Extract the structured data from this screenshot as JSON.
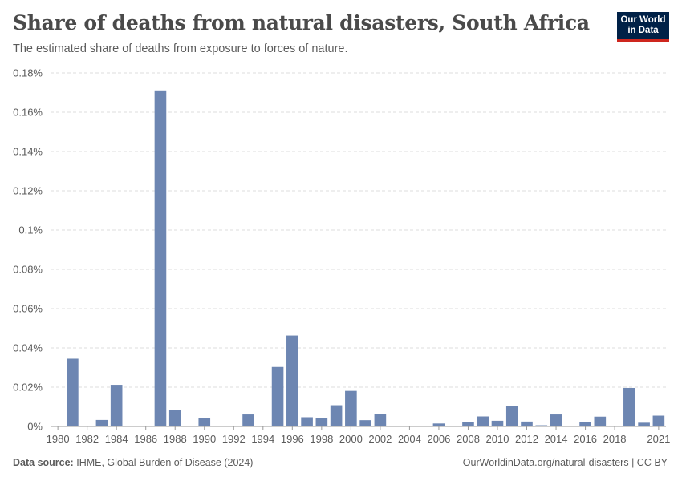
{
  "header": {
    "title": "Share of deaths from natural disasters, South Africa",
    "subtitle": "The estimated share of deaths from exposure to forces of nature."
  },
  "logo": {
    "line1": "Our World",
    "line2": "in Data"
  },
  "footer": {
    "source_label": "Data source:",
    "source_text": "IHME, Global Burden of Disease (2024)",
    "url_license": "OurWorldinData.org/natural-disasters | CC BY"
  },
  "colors": {
    "bar": "#6d86b2",
    "grid": "#dddddd",
    "axis": "#999999",
    "text": "#5b5b5b"
  },
  "chart_data": {
    "type": "bar",
    "title": "Share of deaths from natural disasters, South Africa",
    "xlabel": "",
    "ylabel": "",
    "unit": "%",
    "ylim": [
      0,
      0.18
    ],
    "yticks": [
      0,
      0.02,
      0.04,
      0.06,
      0.08,
      0.1,
      0.12,
      0.14,
      0.16,
      0.18
    ],
    "ytick_labels": [
      "0%",
      "0.02%",
      "0.04%",
      "0.06%",
      "0.08%",
      "0.1%",
      "0.12%",
      "0.14%",
      "0.16%",
      "0.18%"
    ],
    "xticks": [
      1980,
      1982,
      1984,
      1986,
      1988,
      1990,
      1992,
      1994,
      1996,
      1998,
      2000,
      2002,
      2004,
      2006,
      2008,
      2010,
      2012,
      2014,
      2016,
      2018,
      2021
    ],
    "grid": true,
    "categories": [
      1980,
      1981,
      1982,
      1983,
      1984,
      1985,
      1986,
      1987,
      1988,
      1989,
      1990,
      1991,
      1992,
      1993,
      1994,
      1995,
      1996,
      1997,
      1998,
      1999,
      2000,
      2001,
      2002,
      2003,
      2004,
      2005,
      2006,
      2007,
      2008,
      2009,
      2010,
      2011,
      2012,
      2013,
      2014,
      2015,
      2016,
      2017,
      2018,
      2019,
      2020,
      2021
    ],
    "values": [
      0,
      0.0345,
      0,
      0.0033,
      0.0212,
      0,
      0,
      0.1711,
      0.0085,
      0,
      0.0041,
      0,
      0,
      0.0061,
      0.0004,
      0.0303,
      0.0463,
      0.0047,
      0.0041,
      0.0108,
      0.0181,
      0.0032,
      0.0063,
      0.0004,
      0.0003,
      0.0003,
      0.0015,
      0,
      0.0022,
      0.0051,
      0.0029,
      0.0106,
      0.0025,
      0.0006,
      0.0061,
      0,
      0.0023,
      0.005,
      0,
      0.0196,
      0.0019,
      0.0055
    ]
  }
}
